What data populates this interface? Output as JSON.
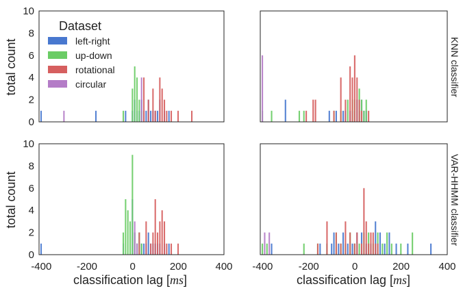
{
  "chart_data": {
    "type": "bar",
    "legend": {
      "title": "Dataset",
      "placement": "top-left",
      "entries": [
        {
          "label": "left-right",
          "color": "#4878cf"
        },
        {
          "label": "up-down",
          "color": "#6acc65"
        },
        {
          "label": "rotational",
          "color": "#d65f5f"
        },
        {
          "label": "circular",
          "color": "#b47cc7"
        }
      ]
    },
    "xlabel": "classification lag [ms]",
    "ylabel": "total count",
    "xlim": [
      -410,
      400
    ],
    "ylim": [
      0,
      10
    ],
    "xticks": [
      "-400",
      "-200",
      "0",
      "200",
      "400"
    ],
    "yticks": [
      "0",
      "2",
      "4",
      "6",
      "8",
      "10"
    ],
    "bin_width": 8,
    "row_labels": [
      "KNN classifier",
      "VAR-HHMM classifier"
    ],
    "panels": [
      {
        "row": 0,
        "col": 0,
        "series": [
          {
            "name": "left-right",
            "color": "#4878cf",
            "x": [
              -400,
              -160,
              -30,
              0,
              10,
              20,
              30,
              40,
              50,
              60,
              70,
              80,
              90,
              100,
              110,
              120,
              140,
              160
            ],
            "y": [
              1,
              1,
              1,
              1,
              2,
              1,
              1,
              2,
              1,
              1,
              2,
              1,
              1,
              1,
              1,
              2,
              1,
              1
            ]
          },
          {
            "name": "up-down",
            "color": "#6acc65",
            "x": [
              -40,
              0,
              10,
              20,
              30,
              40
            ],
            "y": [
              1,
              3,
              5,
              4,
              2,
              1
            ]
          },
          {
            "name": "rotational",
            "color": "#d65f5f",
            "x": [
              50,
              70,
              90,
              100,
              120,
              130,
              140,
              150,
              170,
              200,
              260
            ],
            "y": [
              4,
              2,
              3,
              1,
              4,
              3,
              2,
              1,
              1,
              1,
              1
            ]
          },
          {
            "name": "circular",
            "color": "#b47cc7",
            "x": [
              -300,
              40
            ],
            "y": [
              1,
              4
            ]
          }
        ]
      },
      {
        "row": 0,
        "col": 1,
        "series": [
          {
            "name": "left-right",
            "color": "#4878cf",
            "x": [
              -300,
              -110,
              -80,
              -50,
              -40,
              -20,
              0,
              10,
              20,
              30,
              40,
              50
            ],
            "y": [
              2,
              1,
              1,
              1,
              1,
              1,
              1,
              2,
              1,
              2,
              1,
              1
            ]
          },
          {
            "name": "up-down",
            "color": "#6acc65",
            "x": [
              -400,
              -360,
              -240,
              -220,
              -90,
              -60,
              -30,
              -10,
              0,
              20,
              30,
              40,
              50
            ],
            "y": [
              1,
              1,
              1,
              1,
              1,
              1,
              2,
              2,
              2,
              3,
              2,
              1,
              2
            ]
          },
          {
            "name": "rotational",
            "color": "#d65f5f",
            "x": [
              -210,
              -180,
              -170,
              -90,
              -60,
              -40,
              -20,
              -10,
              0,
              10,
              20,
              30,
              60
            ],
            "y": [
              1,
              2,
              2,
              1,
              4,
              2,
              5,
              4,
              6,
              4,
              2,
              1,
              1
            ]
          },
          {
            "name": "circular",
            "color": "#b47cc7",
            "x": [
              -400
            ],
            "y": [
              6
            ]
          }
        ]
      },
      {
        "row": 1,
        "col": 0,
        "series": [
          {
            "name": "left-right",
            "color": "#4878cf",
            "x": [
              -400,
              -40,
              0,
              10,
              20,
              30,
              40,
              50,
              60,
              70,
              80,
              90,
              100,
              110,
              120,
              140,
              160
            ],
            "y": [
              1,
              1,
              5,
              2,
              1,
              2,
              1,
              1,
              1,
              2,
              1,
              1,
              1,
              1,
              1,
              1,
              1
            ]
          },
          {
            "name": "up-down",
            "color": "#6acc65",
            "x": [
              -40,
              -30,
              -20,
              -10,
              0,
              10,
              20,
              30,
              40
            ],
            "y": [
              2,
              5,
              4,
              3,
              9,
              2,
              1,
              2,
              1
            ]
          },
          {
            "name": "rotational",
            "color": "#d65f5f",
            "x": [
              30,
              60,
              80,
              90,
              100,
              110,
              120,
              130,
              140,
              150,
              170,
              200
            ],
            "y": [
              2,
              3,
              1,
              2,
              5,
              2,
              3,
              4,
              3,
              1,
              1,
              1
            ]
          },
          {
            "name": "circular",
            "color": "#b47cc7",
            "x": [
              10,
              20
            ],
            "y": [
              3,
              1
            ]
          }
        ]
      },
      {
        "row": 1,
        "col": 1,
        "series": [
          {
            "name": "left-right",
            "color": "#4878cf",
            "x": [
              -360,
              -150,
              -120,
              -100,
              -90,
              -70,
              -50,
              -30,
              -10,
              0,
              10,
              30,
              50,
              70,
              90,
              110,
              130,
              150,
              180,
              230,
              330
            ],
            "y": [
              1,
              1,
              1,
              1,
              2,
              1,
              2,
              1,
              1,
              1,
              2,
              2,
              1,
              1,
              3,
              2,
              1,
              2,
              1,
              1,
              1
            ]
          },
          {
            "name": "up-down",
            "color": "#6acc65",
            "x": [
              -400,
              -380,
              -220,
              -160,
              -120,
              -80,
              -60,
              -40,
              -20,
              0,
              20,
              40,
              60,
              80,
              100,
              120,
              140,
              160,
              200,
              250
            ],
            "y": [
              1,
              1,
              1,
              1,
              1,
              2,
              1,
              1,
              2,
              1,
              1,
              2,
              2,
              1,
              2,
              1,
              2,
              1,
              1,
              2
            ]
          },
          {
            "name": "rotational",
            "color": "#d65f5f",
            "x": [
              -160,
              -120,
              -80,
              -60,
              -40,
              -20,
              0,
              10,
              30,
              40,
              50,
              60,
              70,
              80,
              90,
              100
            ],
            "y": [
              1,
              3,
              2,
              1,
              3,
              2,
              1,
              2,
              1,
              6,
              3,
              1,
              2,
              2,
              1,
              1
            ]
          },
          {
            "name": "circular",
            "color": "#b47cc7",
            "x": [
              -390,
              -370
            ],
            "y": [
              2,
              2
            ]
          }
        ]
      }
    ]
  }
}
